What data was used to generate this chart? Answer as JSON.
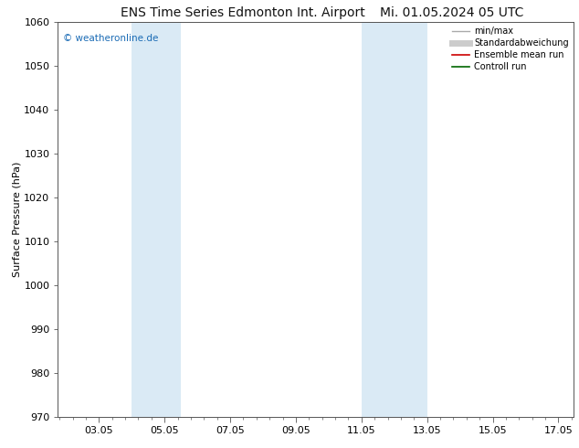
{
  "title_left": "ENS Time Series Edmonton Int. Airport",
  "title_right": "Mi. 01.05.2024 05 UTC",
  "ylabel": "Surface Pressure (hPa)",
  "ylim": [
    970,
    1060
  ],
  "yticks": [
    970,
    980,
    990,
    1000,
    1010,
    1020,
    1030,
    1040,
    1050,
    1060
  ],
  "xlim": [
    1.8,
    17.5
  ],
  "xtick_positions": [
    3.05,
    5.05,
    7.05,
    9.05,
    11.05,
    13.05,
    15.05,
    17.05
  ],
  "xtick_labels": [
    "03.05",
    "05.05",
    "07.05",
    "09.05",
    "11.05",
    "13.05",
    "15.05",
    "17.05"
  ],
  "shade_bands": [
    {
      "xmin": 4.05,
      "xmax": 5.55
    },
    {
      "xmin": 11.05,
      "xmax": 13.05
    }
  ],
  "shade_color": "#daeaf5",
  "watermark": "© weatheronline.de",
  "watermark_color": "#1a6bb5",
  "legend_items": [
    {
      "label": "min/max",
      "color": "#aaaaaa",
      "lw": 1.0,
      "style": "-"
    },
    {
      "label": "Standardabweichung",
      "color": "#cccccc",
      "lw": 5.0,
      "style": "-"
    },
    {
      "label": "Ensemble mean run",
      "color": "#cc0000",
      "lw": 1.2,
      "style": "-"
    },
    {
      "label": "Controll run",
      "color": "#006600",
      "lw": 1.2,
      "style": "-"
    }
  ],
  "bg_color": "#ffffff",
  "spine_color": "#555555",
  "title_fontsize": 10,
  "tick_fontsize": 8,
  "ylabel_fontsize": 8,
  "legend_fontsize": 7
}
